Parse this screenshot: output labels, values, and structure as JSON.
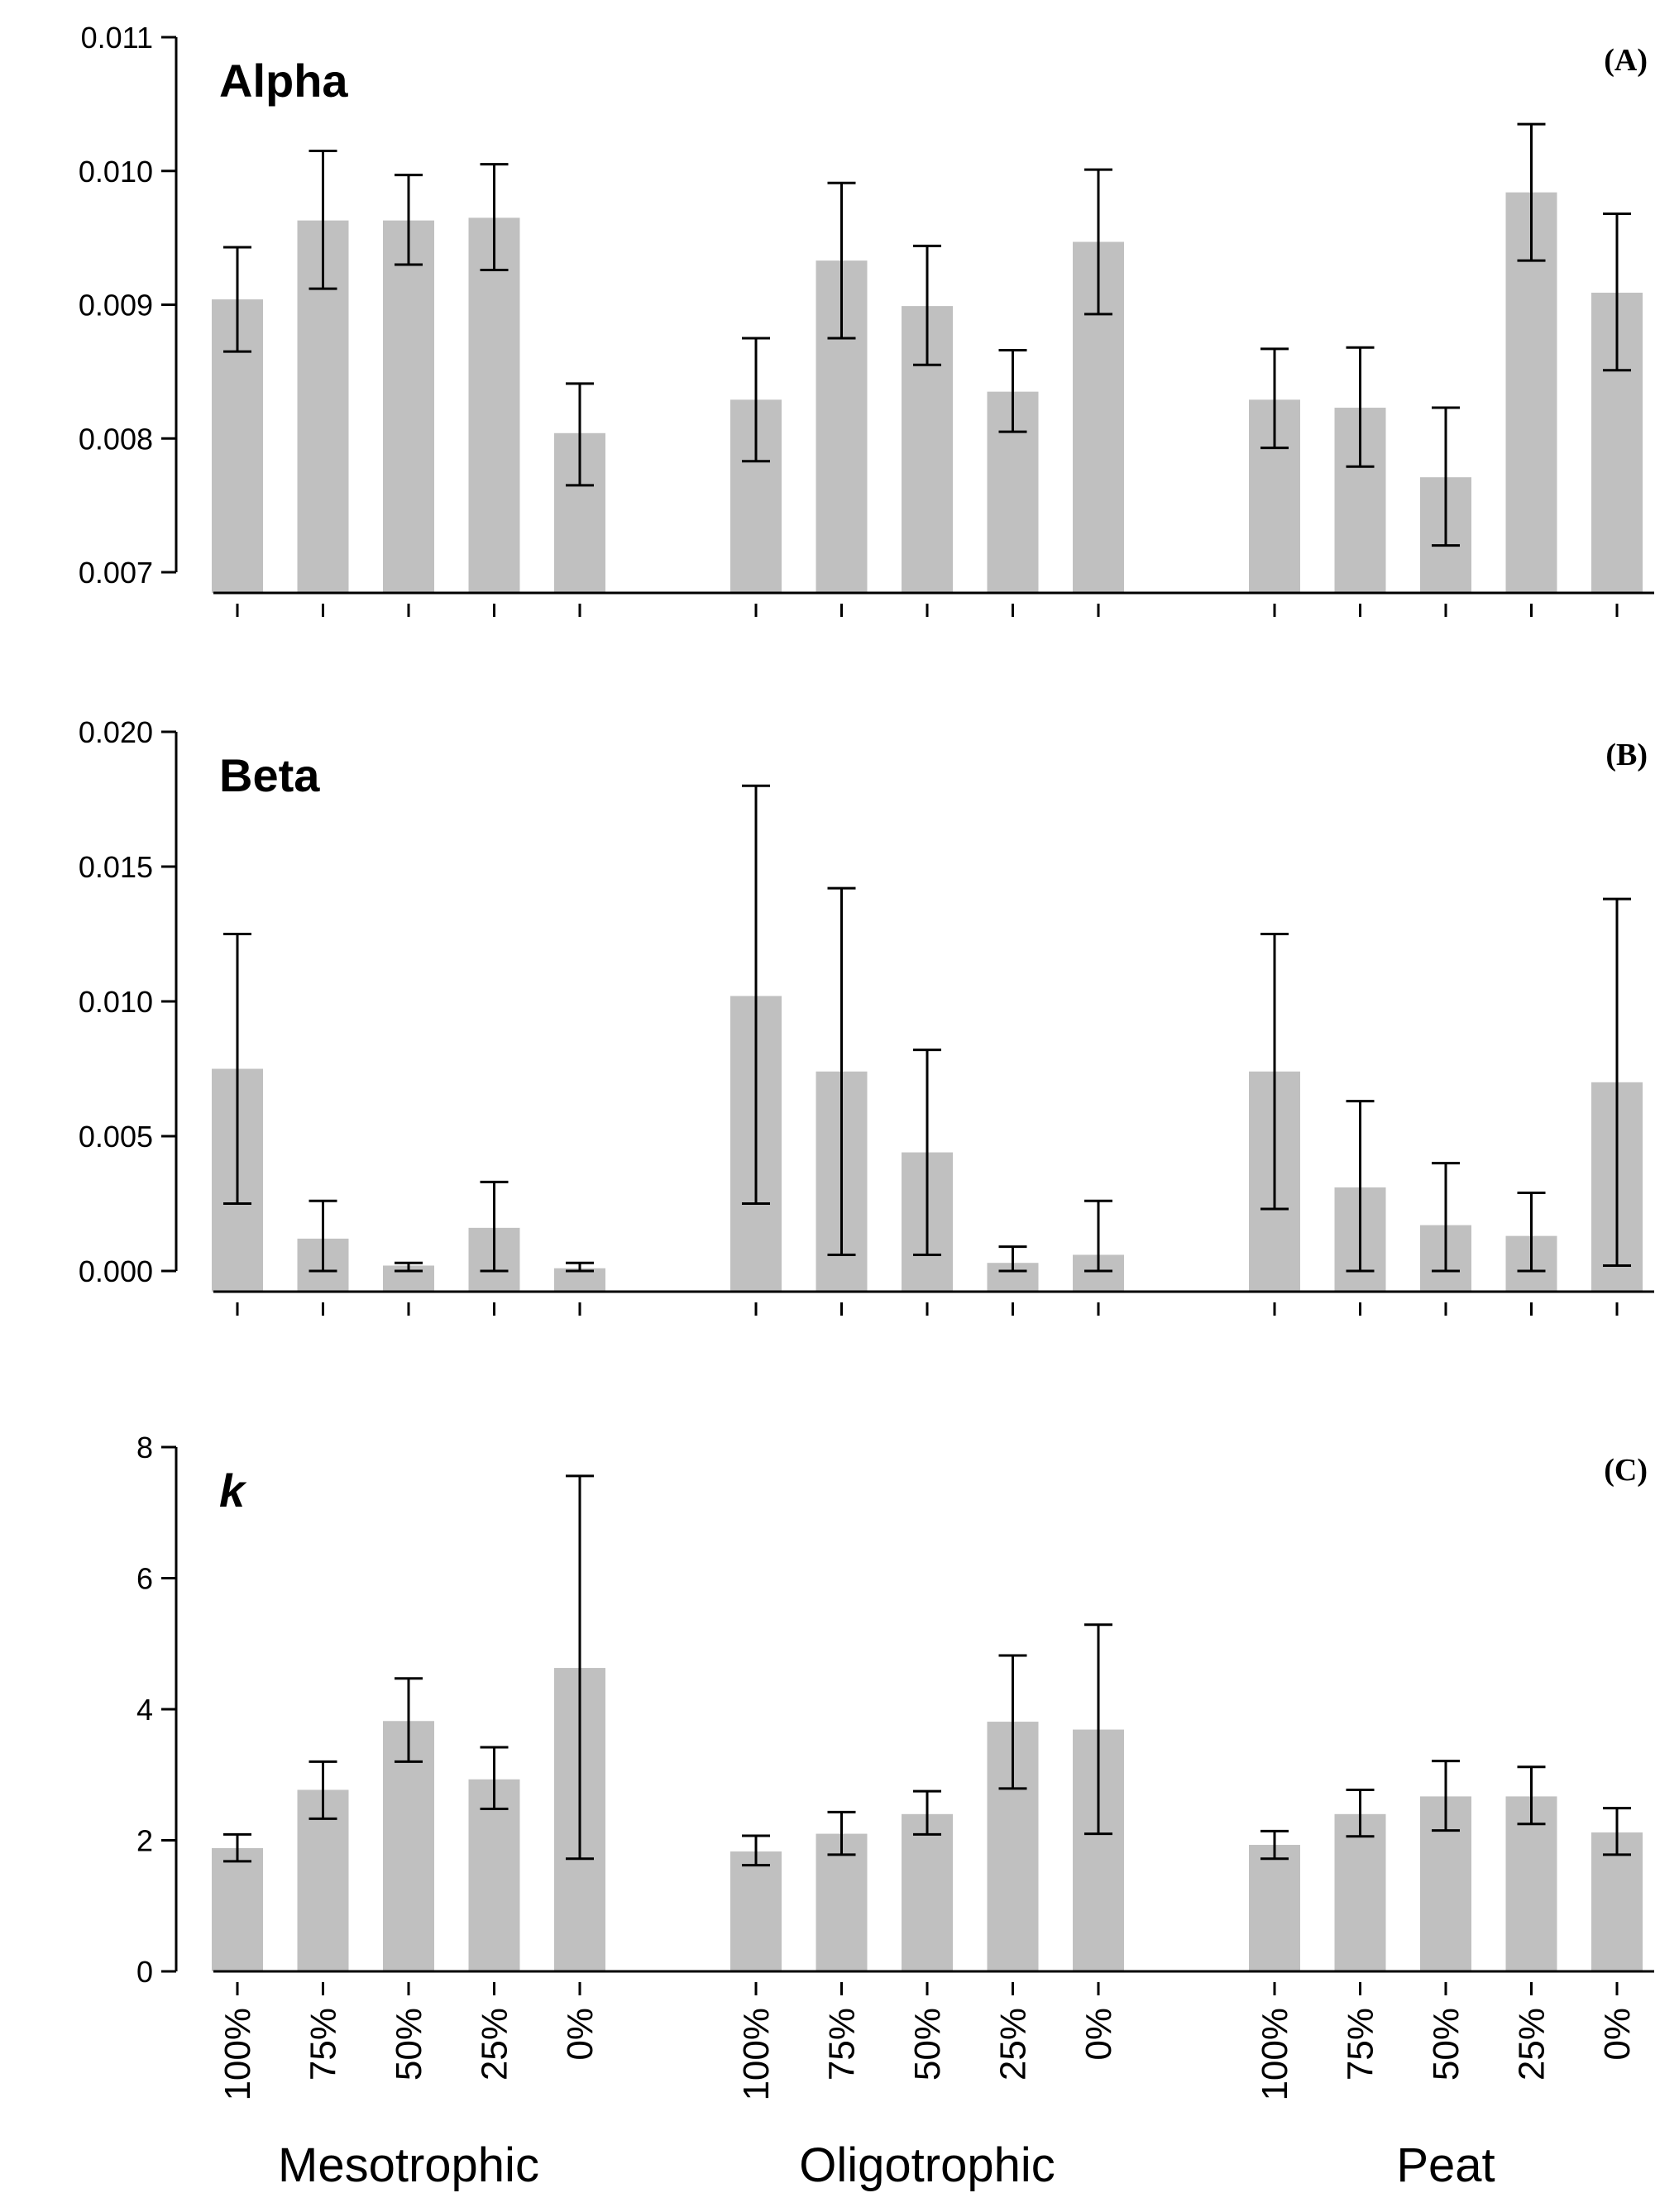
{
  "chart_data": [
    {
      "type": "bar",
      "title": "Alpha",
      "panel_label": "(A)",
      "groups": [
        "Mesotrophic",
        "Oligotrophic",
        "Peat"
      ],
      "categories": [
        "100%",
        "75%",
        "50%",
        "25%",
        "0%"
      ],
      "ylim": [
        0.007,
        0.011
      ],
      "yticks": [
        "0.007",
        "0.008",
        "0.009",
        "0.010",
        "0.011"
      ],
      "bar_color": "#c0c0c0",
      "values": [
        [
          0.00904,
          0.00963,
          0.00963,
          0.00965,
          0.00804
        ],
        [
          0.00829,
          0.00933,
          0.00899,
          0.00835,
          0.00947
        ],
        [
          0.00829,
          0.00823,
          0.00771,
          0.00984,
          0.00909
        ]
      ],
      "error_low": [
        [
          0.00865,
          0.00912,
          0.0093,
          0.00926,
          0.00765
        ],
        [
          0.00783,
          0.00875,
          0.00855,
          0.00805,
          0.00893
        ],
        [
          0.00793,
          0.00779,
          0.0072,
          0.00933,
          0.00851
        ]
      ],
      "error_high": [
        [
          0.00943,
          0.01015,
          0.00997,
          0.01005,
          0.00841
        ],
        [
          0.00875,
          0.00991,
          0.00944,
          0.00866,
          0.01001
        ],
        [
          0.00867,
          0.00868,
          0.00823,
          0.01035,
          0.00968
        ]
      ]
    },
    {
      "type": "bar",
      "title": "Beta",
      "panel_label": "(B)",
      "groups": [
        "Mesotrophic",
        "Oligotrophic",
        "Peat"
      ],
      "categories": [
        "100%",
        "75%",
        "50%",
        "25%",
        "0%"
      ],
      "ylim": [
        0,
        0.02
      ],
      "yticks": [
        "0.000",
        "0.005",
        "0.010",
        "0.015",
        "0.020"
      ],
      "bar_color": "#c0c0c0",
      "values": [
        [
          0.0075,
          0.0012,
          0.0002,
          0.0016,
          0.0001
        ],
        [
          0.0102,
          0.0074,
          0.0044,
          0.0003,
          0.0006
        ],
        [
          0.0074,
          0.0031,
          0.0017,
          0.0013,
          0.007
        ]
      ],
      "error_low": [
        [
          0.0025,
          0.0,
          0.0,
          0.0,
          0.0
        ],
        [
          0.0025,
          0.0006,
          0.0006,
          0.0,
          0.0
        ],
        [
          0.0023,
          0.0,
          0.0,
          0.0,
          0.0002
        ]
      ],
      "error_high": [
        [
          0.0125,
          0.0026,
          0.0003,
          0.0033,
          0.0003
        ],
        [
          0.018,
          0.0142,
          0.0082,
          0.0009,
          0.0026
        ],
        [
          0.0125,
          0.0063,
          0.004,
          0.0029,
          0.0138
        ]
      ]
    },
    {
      "type": "bar",
      "title": "k",
      "panel_label": "(C)",
      "groups": [
        "Mesotrophic",
        "Oligotrophic",
        "Peat"
      ],
      "categories": [
        "100%",
        "75%",
        "50%",
        "25%",
        "0%"
      ],
      "ylim": [
        0,
        8
      ],
      "yticks": [
        "0",
        "2",
        "4",
        "6",
        "8"
      ],
      "bar_color": "#c0c0c0",
      "values": [
        [
          1.88,
          2.77,
          3.82,
          2.93,
          4.63
        ],
        [
          1.83,
          2.1,
          2.4,
          3.81,
          3.69
        ],
        [
          1.93,
          2.4,
          2.67,
          2.67,
          2.12
        ]
      ],
      "error_low": [
        [
          1.68,
          2.33,
          3.2,
          2.48,
          1.72
        ],
        [
          1.62,
          1.78,
          2.09,
          2.79,
          2.1
        ],
        [
          1.72,
          2.06,
          2.15,
          2.25,
          1.78
        ]
      ],
      "error_high": [
        [
          2.09,
          3.2,
          4.47,
          3.42,
          7.56
        ],
        [
          2.07,
          2.43,
          2.75,
          4.82,
          5.29
        ],
        [
          2.14,
          2.77,
          3.21,
          3.12,
          2.49
        ]
      ]
    }
  ]
}
